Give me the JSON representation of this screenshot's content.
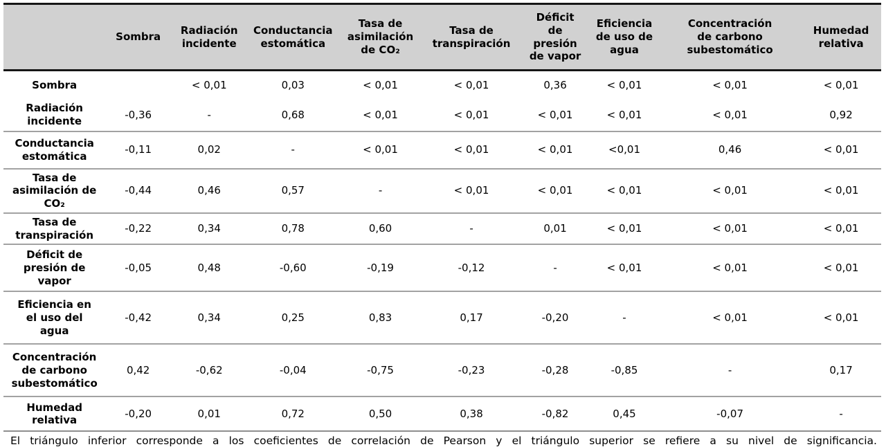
{
  "table": {
    "columns": [
      "",
      "Sombra",
      "Radiación\nincidente",
      "Conductancia\nestomática",
      "Tasa de\nasimilación\nde CO₂",
      "Tasa de\ntranspiración",
      "Déficit\nde\npresión\nde vapor",
      "Eficiencia\nde uso de\nagua",
      "Concentración\nde carbono\nsubestomático",
      "Humedad\nrelativa"
    ],
    "rows": [
      {
        "label": "Sombra",
        "cells": [
          "",
          "< 0,01",
          "0,03",
          "< 0,01",
          "< 0,01",
          "0,36",
          "< 0,01",
          "< 0,01",
          "< 0,01"
        ]
      },
      {
        "label": "Radiación\nincidente",
        "cells": [
          "-0,36",
          "-",
          "0,68",
          "< 0,01",
          "< 0,01",
          "< 0,01",
          "< 0,01",
          "< 0,01",
          "0,92"
        ]
      },
      {
        "label": "Conductancia\nestomática",
        "cells": [
          "-0,11",
          "0,02",
          "-",
          "< 0,01",
          "< 0,01",
          "< 0,01",
          "<0,01",
          "0,46",
          "< 0,01"
        ]
      },
      {
        "label": "Tasa de\nasimilación de\nCO₂",
        "cells": [
          "-0,44",
          "0,46",
          "0,57",
          "-",
          "< 0,01",
          "< 0,01",
          "< 0,01",
          "< 0,01",
          "< 0,01"
        ]
      },
      {
        "label": "Tasa de\ntranspiración",
        "cells": [
          "-0,22",
          "0,34",
          "0,78",
          "0,60",
          "-",
          "0,01",
          "< 0,01",
          "< 0,01",
          "< 0,01"
        ]
      },
      {
        "label": "Déficit de\npresión de\nvapor",
        "cells": [
          "-0,05",
          "0,48",
          "-0,60",
          "-0,19",
          "-0,12",
          "-",
          "< 0,01",
          "< 0,01",
          "< 0,01"
        ]
      },
      {
        "label": "Eficiencia en\nel uso del\nagua",
        "cells": [
          "-0,42",
          "0,34",
          "0,25",
          "0,83",
          "0,17",
          "-0,20",
          "-",
          "< 0,01",
          "< 0,01"
        ]
      },
      {
        "label": "Concentración\nde carbono\nsubestomático",
        "cells": [
          "0,42",
          "-0,62",
          "-0,04",
          "-0,75",
          "-0,23",
          "-0,28",
          "-0,85",
          "-",
          "0,17"
        ]
      },
      {
        "label": "Humedad\nrelativa",
        "cells": [
          "-0,20",
          "0,01",
          "0,72",
          "0,50",
          "0,38",
          "-0,82",
          "0,45",
          "-0,07",
          "-"
        ]
      }
    ],
    "footnote": "El triángulo inferior corresponde a los coeficientes de correlación de Pearson y el triángulo superior se refiere a su nivel de significancia.",
    "colors": {
      "header_bg": "#d1d1d1",
      "heavy_rule": "#161616",
      "row_rule": "#a2a2a2",
      "text": "#000000"
    }
  }
}
